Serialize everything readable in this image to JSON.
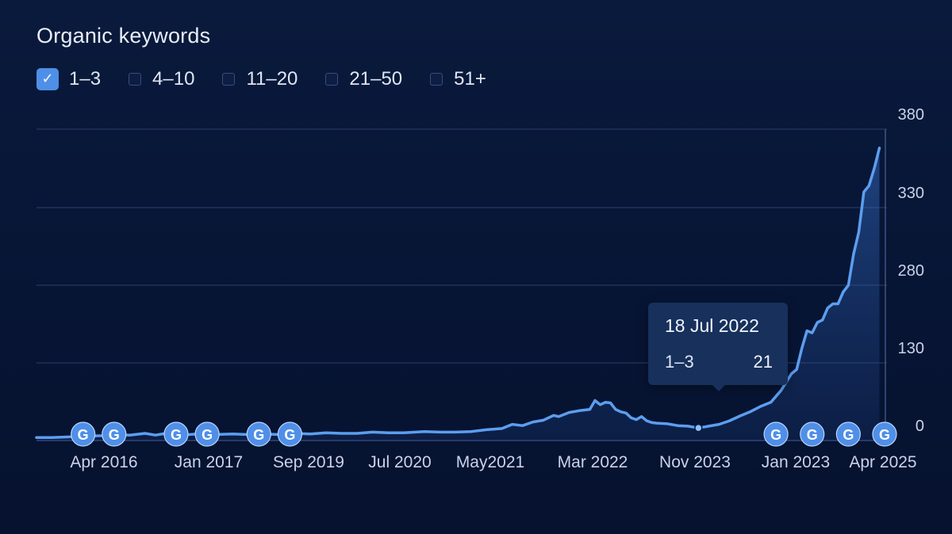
{
  "title": "Organic keywords",
  "legend": [
    {
      "label": "1–3",
      "checked": true
    },
    {
      "label": "4–10",
      "checked": false
    },
    {
      "label": "11–20",
      "checked": false
    },
    {
      "label": "21–50",
      "checked": false
    },
    {
      "label": "51+",
      "checked": false
    }
  ],
  "tooltip": {
    "date": "18 Jul 2022",
    "series": "1–3",
    "value": "21"
  },
  "markers": {
    "label": "G"
  },
  "colors": {
    "line": "#5c9eef",
    "area": "#3b78d6",
    "marker": "#4f8fe8",
    "grid": "#2c3f6c",
    "text": "#c9d3e8"
  },
  "chart_data": {
    "type": "area",
    "title": "Organic keywords",
    "series_name": "1–3",
    "y_ticks": [
      "0",
      "130",
      "280",
      "330",
      "380"
    ],
    "x_ticks": [
      "Apr 2016",
      "Jan 2017",
      "Sep 2019",
      "Jul 2020",
      "May2021",
      "Mar 2022",
      "Nov 2023",
      "Jan 2023",
      "Apr 2025"
    ],
    "points": [
      {
        "x": 0,
        "y": 5
      },
      {
        "x": 3,
        "y": 5
      },
      {
        "x": 6,
        "y": 6
      },
      {
        "x": 9,
        "y": 7
      },
      {
        "x": 12,
        "y": 8
      },
      {
        "x": 15,
        "y": 8
      },
      {
        "x": 16,
        "y": 10
      },
      {
        "x": 18,
        "y": 9
      },
      {
        "x": 21,
        "y": 12
      },
      {
        "x": 23,
        "y": 9
      },
      {
        "x": 25,
        "y": 12
      },
      {
        "x": 28,
        "y": 9
      },
      {
        "x": 31,
        "y": 11
      },
      {
        "x": 34,
        "y": 10
      },
      {
        "x": 38,
        "y": 11
      },
      {
        "x": 41,
        "y": 10
      },
      {
        "x": 44,
        "y": 11
      },
      {
        "x": 47,
        "y": 10
      },
      {
        "x": 50,
        "y": 12
      },
      {
        "x": 53,
        "y": 11
      },
      {
        "x": 56,
        "y": 13
      },
      {
        "x": 59,
        "y": 12
      },
      {
        "x": 62,
        "y": 12
      },
      {
        "x": 65,
        "y": 14
      },
      {
        "x": 68,
        "y": 13
      },
      {
        "x": 71,
        "y": 13
      },
      {
        "x": 75,
        "y": 15
      },
      {
        "x": 78,
        "y": 14
      },
      {
        "x": 81,
        "y": 14
      },
      {
        "x": 84,
        "y": 15
      },
      {
        "x": 87,
        "y": 18
      },
      {
        "x": 90,
        "y": 20
      },
      {
        "x": 92,
        "y": 27
      },
      {
        "x": 94,
        "y": 25
      },
      {
        "x": 96,
        "y": 31
      },
      {
        "x": 98,
        "y": 34
      },
      {
        "x": 100,
        "y": 42
      },
      {
        "x": 101,
        "y": 40
      },
      {
        "x": 103,
        "y": 47
      },
      {
        "x": 105,
        "y": 50
      },
      {
        "x": 107,
        "y": 52
      },
      {
        "x": 108,
        "y": 67
      },
      {
        "x": 109,
        "y": 60
      },
      {
        "x": 110,
        "y": 64
      },
      {
        "x": 111,
        "y": 63
      },
      {
        "x": 112,
        "y": 52
      },
      {
        "x": 113,
        "y": 48
      },
      {
        "x": 114,
        "y": 46
      },
      {
        "x": 115,
        "y": 38
      },
      {
        "x": 116,
        "y": 35
      },
      {
        "x": 117,
        "y": 40
      },
      {
        "x": 118,
        "y": 33
      },
      {
        "x": 119,
        "y": 30
      },
      {
        "x": 120,
        "y": 29
      },
      {
        "x": 122,
        "y": 28
      },
      {
        "x": 124,
        "y": 25
      },
      {
        "x": 126,
        "y": 24
      },
      {
        "x": 128,
        "y": 21
      },
      {
        "x": 130,
        "y": 24
      },
      {
        "x": 132,
        "y": 27
      },
      {
        "x": 134,
        "y": 33
      },
      {
        "x": 136,
        "y": 41
      },
      {
        "x": 138,
        "y": 48
      },
      {
        "x": 140,
        "y": 57
      },
      {
        "x": 142,
        "y": 64
      },
      {
        "x": 144,
        "y": 84
      },
      {
        "x": 146,
        "y": 112
      },
      {
        "x": 147,
        "y": 119
      },
      {
        "x": 148,
        "y": 158
      },
      {
        "x": 149,
        "y": 192
      },
      {
        "x": 150,
        "y": 188
      },
      {
        "x": 151,
        "y": 208
      },
      {
        "x": 152,
        "y": 213
      },
      {
        "x": 153,
        "y": 236
      },
      {
        "x": 154,
        "y": 244
      },
      {
        "x": 155,
        "y": 244
      },
      {
        "x": 156,
        "y": 267
      },
      {
        "x": 157,
        "y": 280
      },
      {
        "x": 158,
        "y": 300
      },
      {
        "x": 159,
        "y": 314
      },
      {
        "x": 160,
        "y": 340
      },
      {
        "x": 161,
        "y": 344
      },
      {
        "x": 162,
        "y": 355
      },
      {
        "x": 163,
        "y": 368
      }
    ],
    "marker_x": [
      9,
      15,
      27,
      33,
      43,
      49,
      143,
      150,
      157,
      164
    ],
    "tooltip_point": {
      "x": 128,
      "y": 21
    }
  }
}
